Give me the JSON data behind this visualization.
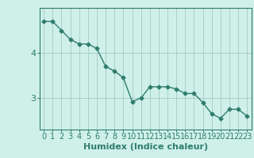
{
  "x": [
    0,
    1,
    2,
    3,
    4,
    5,
    6,
    7,
    8,
    9,
    10,
    11,
    12,
    13,
    14,
    15,
    16,
    17,
    18,
    19,
    20,
    21,
    22,
    23
  ],
  "y": [
    4.7,
    4.7,
    4.5,
    4.3,
    4.2,
    4.2,
    4.1,
    3.7,
    3.6,
    3.45,
    2.92,
    3.0,
    3.25,
    3.25,
    3.25,
    3.2,
    3.1,
    3.1,
    2.9,
    2.65,
    2.55,
    2.75,
    2.75,
    2.6
  ],
  "line_color": "#2e7d6e",
  "marker": "D",
  "marker_size": 2.5,
  "bg_color": "#cff0e8",
  "grid_color": "#a8cfc8",
  "xlabel": "Humidex (Indice chaleur)",
  "yticks": [
    3,
    4
  ],
  "ylim": [
    2.3,
    5.0
  ],
  "xlim": [
    -0.5,
    23.5
  ],
  "xlabel_fontsize": 8,
  "tick_fontsize": 7,
  "line_width": 1.0
}
